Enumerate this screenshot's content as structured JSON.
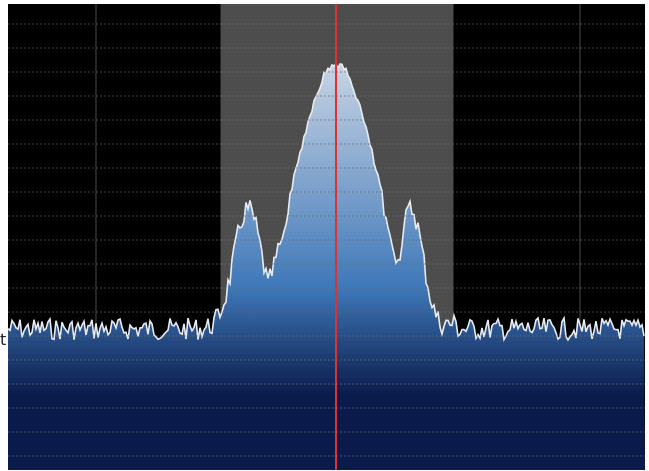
{
  "view": {
    "edge_label": "t",
    "colors": {
      "background": "#000000",
      "grid_major": "#4a4a4a",
      "grid_minor": "#6a6a6a",
      "passband": "#5a5a5a",
      "trace": "#e8ecf2",
      "fill_top": "#c8d4e4",
      "fill_mid": "#3f78b8",
      "fill_bottom": "#0a1a4a",
      "tuning_marker": "#e03030"
    }
  }
}
